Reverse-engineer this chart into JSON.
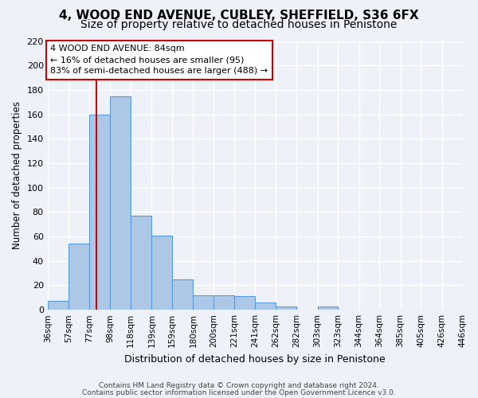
{
  "title": "4, WOOD END AVENUE, CUBLEY, SHEFFIELD, S36 6FX",
  "subtitle": "Size of property relative to detached houses in Penistone",
  "xlabel": "Distribution of detached houses by size in Penistone",
  "ylabel": "Number of detached properties",
  "bar_values": [
    7,
    54,
    160,
    175,
    77,
    61,
    25,
    12,
    12,
    11,
    6,
    3,
    0,
    3,
    0,
    0,
    0,
    0,
    0,
    0
  ],
  "x_labels": [
    "36sqm",
    "57sqm",
    "77sqm",
    "98sqm",
    "118sqm",
    "139sqm",
    "159sqm",
    "180sqm",
    "200sqm",
    "221sqm",
    "241sqm",
    "262sqm",
    "282sqm",
    "303sqm",
    "323sqm",
    "344sqm",
    "364sqm",
    "385sqm",
    "405sqm",
    "426sqm",
    "446sqm"
  ],
  "bar_color": "#adc8e6",
  "bar_edge_color": "#5b9bd5",
  "vline_x": 84,
  "vline_color": "#cc0000",
  "ylim": [
    0,
    220
  ],
  "yticks": [
    0,
    20,
    40,
    60,
    80,
    100,
    120,
    140,
    160,
    180,
    200,
    220
  ],
  "annotation_title": "4 WOOD END AVENUE: 84sqm",
  "annotation_line1": "← 16% of detached houses are smaller (95)",
  "annotation_line2": "83% of semi-detached houses are larger (488) →",
  "annotation_box_color": "#ffffff",
  "annotation_box_edge": "#cc0000",
  "footer1": "Contains HM Land Registry data © Crown copyright and database right 2024.",
  "footer2": "Contains public sector information licensed under the Open Government Licence v3.0.",
  "bg_color": "#eef2f8",
  "grid_color": "#ffffff",
  "title_fontsize": 11,
  "subtitle_fontsize": 10
}
